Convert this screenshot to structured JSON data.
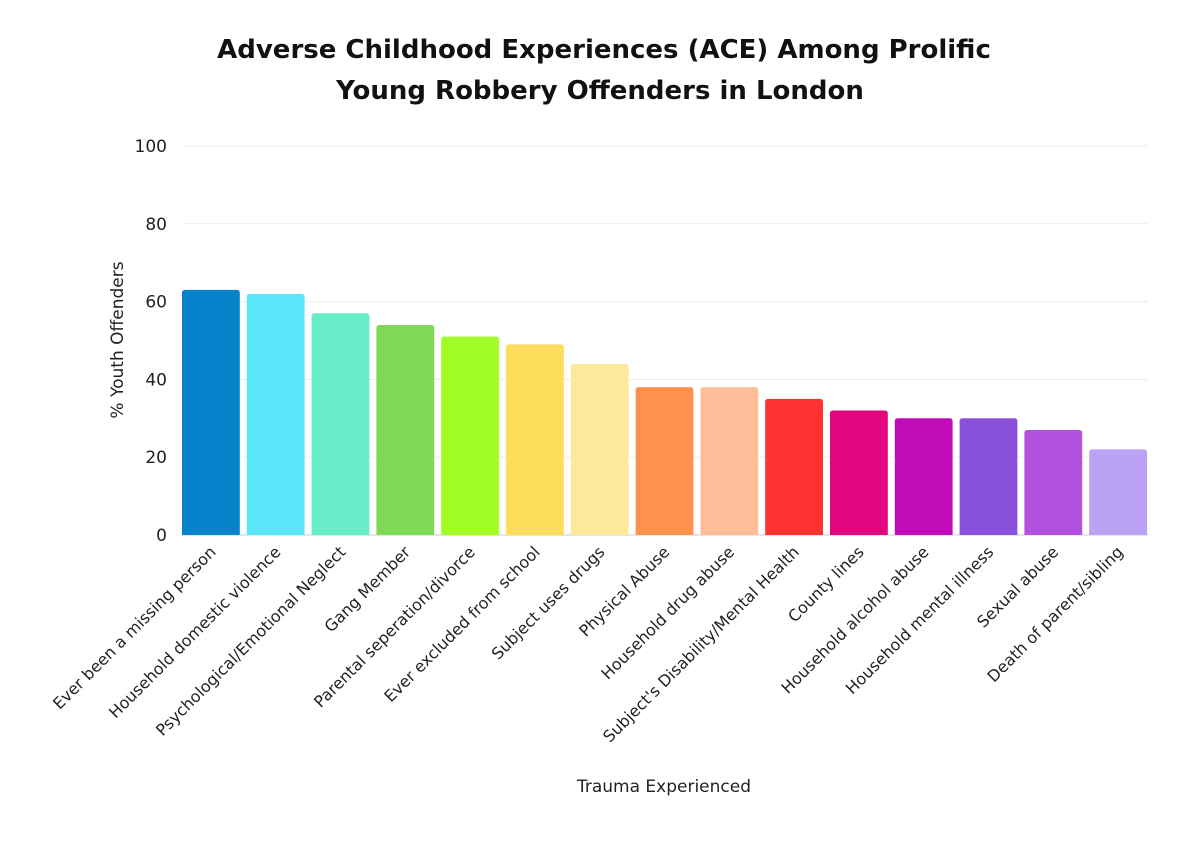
{
  "chart_data": {
    "type": "bar",
    "title": [
      "Adverse Childhood Experiences (ACE) Among Prolific",
      "Young Robbery Offenders in London"
    ],
    "xlabel": "Trauma Experienced",
    "ylabel": "% Youth Offenders",
    "ylim": [
      0,
      100
    ],
    "yticks": [
      0,
      20,
      40,
      60,
      80,
      100
    ],
    "grid": true,
    "categories": [
      "Ever been a missing person",
      "Household domestic violence",
      "Psychological/Emotional Neglect",
      "Gang Member",
      "Parental seperation/divorce",
      "Ever excluded from school",
      "Subject uses drugs",
      "Physical Abuse",
      "Household drug abuse",
      "Subject's Disability/Mental Health",
      "County lines",
      "Household alcohol abuse",
      "Household mental illness",
      "Sexual abuse",
      "Death of parent/sibling"
    ],
    "values": [
      63,
      62,
      57,
      54,
      51,
      49,
      44,
      38,
      38,
      35,
      32,
      30,
      30,
      27,
      22
    ],
    "colors": [
      "#0582CA",
      "#5CE6FB",
      "#67EEC8",
      "#7ED957",
      "#A2FC25",
      "#FEDC5C",
      "#FEE89C",
      "#FF914D",
      "#FFBE98",
      "#FF3131",
      "#E0077F",
      "#C10BB8",
      "#8A52DC",
      "#B351DF",
      "#BCA2F4"
    ]
  }
}
